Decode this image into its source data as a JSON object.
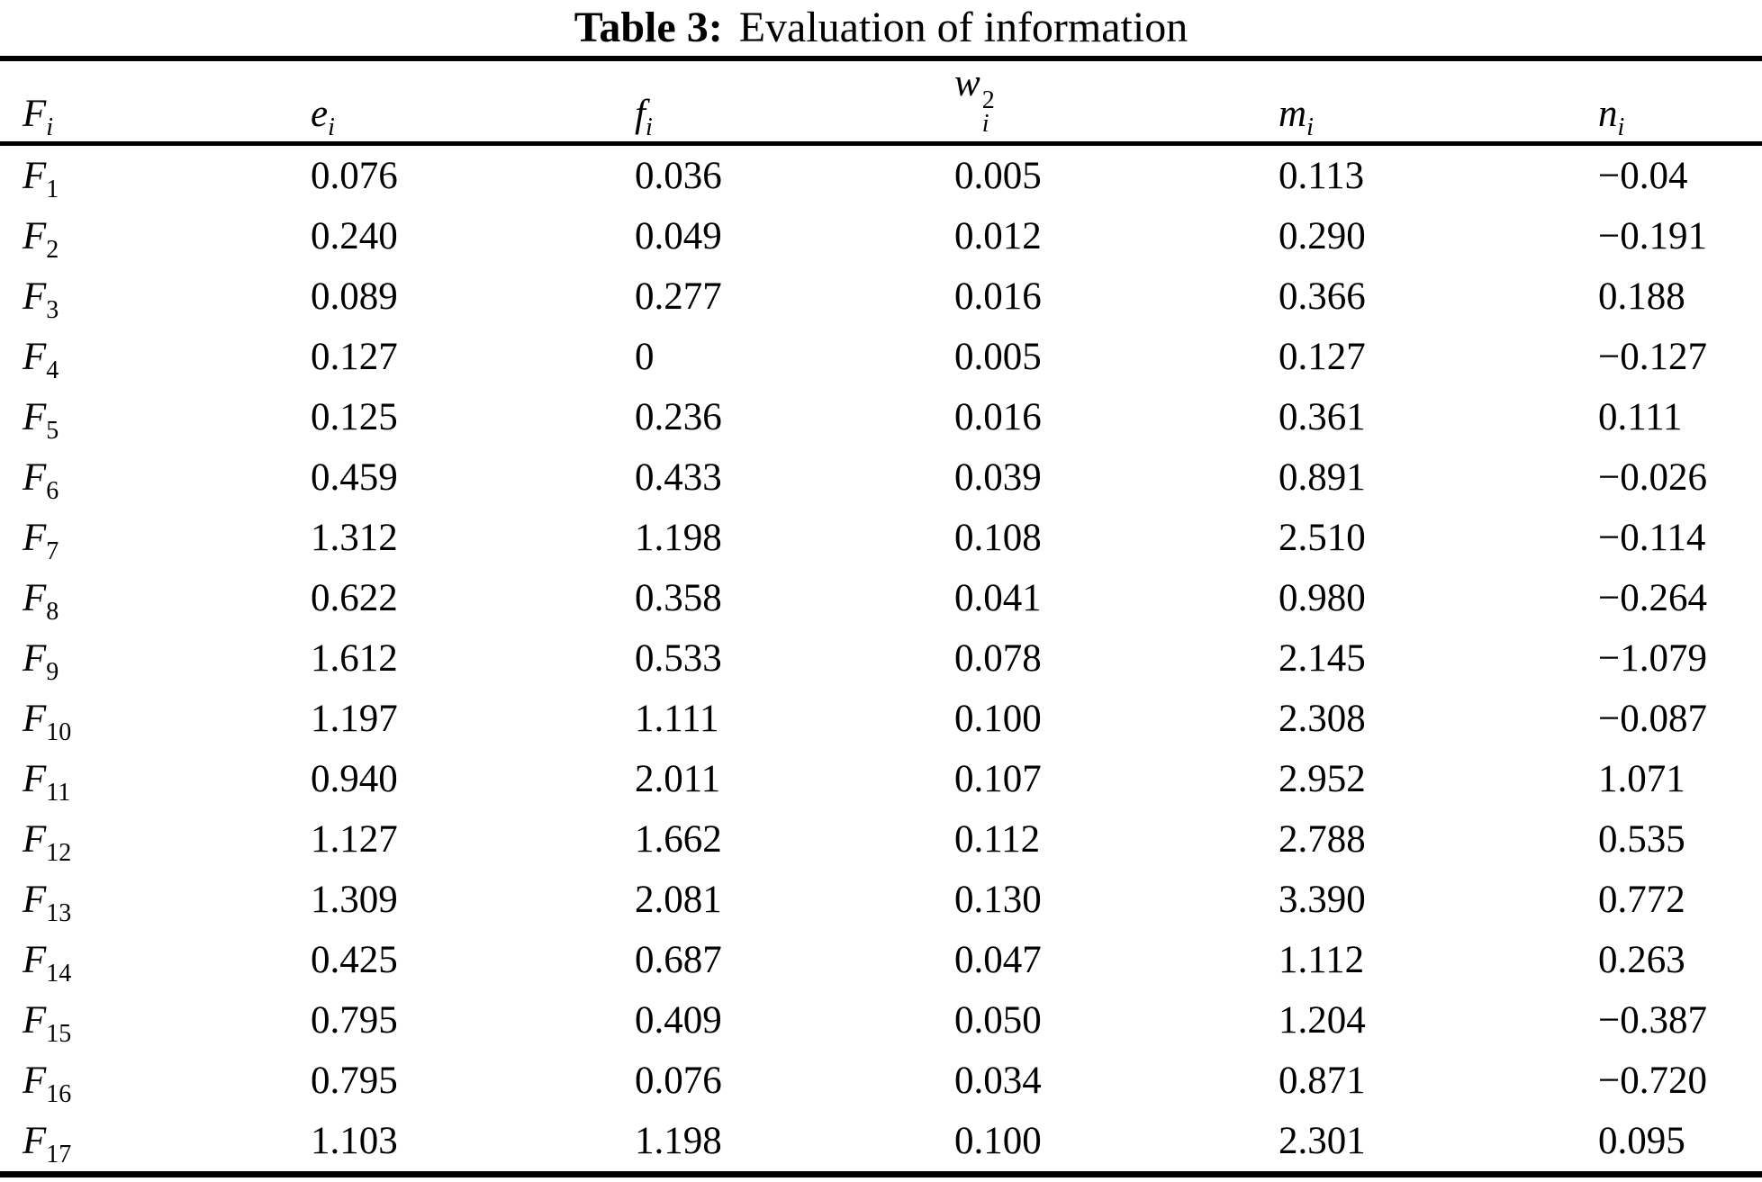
{
  "table": {
    "title_label": "Table 3:",
    "title_text": "Evaluation of information",
    "columns": [
      {
        "base": "F",
        "sub": "i"
      },
      {
        "base": "e",
        "sub": "i"
      },
      {
        "base": "f",
        "sub": "i"
      },
      {
        "base": "w",
        "sub": "i",
        "sup": "2"
      },
      {
        "base": "m",
        "sub": "i"
      },
      {
        "base": "n",
        "sub": "i"
      }
    ],
    "rows": [
      {
        "label_base": "F",
        "label_sub": "1",
        "values": [
          "0.076",
          "0.036",
          "0.005",
          "0.113",
          "−0.04"
        ]
      },
      {
        "label_base": "F",
        "label_sub": "2",
        "values": [
          "0.240",
          "0.049",
          "0.012",
          "0.290",
          "−0.191"
        ]
      },
      {
        "label_base": "F",
        "label_sub": "3",
        "values": [
          "0.089",
          "0.277",
          "0.016",
          "0.366",
          "0.188"
        ]
      },
      {
        "label_base": "F",
        "label_sub": "4",
        "values": [
          "0.127",
          "0",
          "0.005",
          "0.127",
          "−0.127"
        ]
      },
      {
        "label_base": "F",
        "label_sub": "5",
        "values": [
          "0.125",
          "0.236",
          "0.016",
          "0.361",
          "0.111"
        ]
      },
      {
        "label_base": "F",
        "label_sub": "6",
        "values": [
          "0.459",
          "0.433",
          "0.039",
          "0.891",
          "−0.026"
        ]
      },
      {
        "label_base": "F",
        "label_sub": "7",
        "values": [
          "1.312",
          "1.198",
          "0.108",
          "2.510",
          "−0.114"
        ]
      },
      {
        "label_base": "F",
        "label_sub": "8",
        "values": [
          "0.622",
          "0.358",
          "0.041",
          "0.980",
          "−0.264"
        ]
      },
      {
        "label_base": "F",
        "label_sub": "9",
        "values": [
          "1.612",
          "0.533",
          "0.078",
          "2.145",
          "−1.079"
        ]
      },
      {
        "label_base": "F",
        "label_sub": "10",
        "values": [
          "1.197",
          "1.111",
          "0.100",
          "2.308",
          "−0.087"
        ]
      },
      {
        "label_base": "F",
        "label_sub": "11",
        "values": [
          "0.940",
          "2.011",
          "0.107",
          "2.952",
          "1.071"
        ]
      },
      {
        "label_base": "F",
        "label_sub": "12",
        "values": [
          "1.127",
          "1.662",
          "0.112",
          "2.788",
          "0.535"
        ]
      },
      {
        "label_base": "F",
        "label_sub": "13",
        "values": [
          "1.309",
          "2.081",
          "0.130",
          "3.390",
          "0.772"
        ]
      },
      {
        "label_base": "F",
        "label_sub": "14",
        "values": [
          "0.425",
          "0.687",
          "0.047",
          "1.112",
          "0.263"
        ]
      },
      {
        "label_base": "F",
        "label_sub": "15",
        "values": [
          "0.795",
          "0.409",
          "0.050",
          "1.204",
          "−0.387"
        ]
      },
      {
        "label_base": "F",
        "label_sub": "16",
        "values": [
          "0.795",
          "0.076",
          "0.034",
          "0.871",
          "−0.720"
        ]
      },
      {
        "label_base": "F",
        "label_sub": "17",
        "values": [
          "1.103",
          "1.198",
          "0.100",
          "2.301",
          "0.095"
        ]
      }
    ]
  },
  "chart_data": {
    "type": "table",
    "title": "Table 3: Evaluation of information",
    "columns": [
      "F_i",
      "e_i",
      "f_i",
      "w_i^2",
      "m_i",
      "n_i"
    ],
    "rows": [
      [
        "F_1",
        0.076,
        0.036,
        0.005,
        0.113,
        -0.04
      ],
      [
        "F_2",
        0.24,
        0.049,
        0.012,
        0.29,
        -0.191
      ],
      [
        "F_3",
        0.089,
        0.277,
        0.016,
        0.366,
        0.188
      ],
      [
        "F_4",
        0.127,
        0,
        0.005,
        0.127,
        -0.127
      ],
      [
        "F_5",
        0.125,
        0.236,
        0.016,
        0.361,
        0.111
      ],
      [
        "F_6",
        0.459,
        0.433,
        0.039,
        0.891,
        -0.026
      ],
      [
        "F_7",
        1.312,
        1.198,
        0.108,
        2.51,
        -0.114
      ],
      [
        "F_8",
        0.622,
        0.358,
        0.041,
        0.98,
        -0.264
      ],
      [
        "F_9",
        1.612,
        0.533,
        0.078,
        2.145,
        -1.079
      ],
      [
        "F_10",
        1.197,
        1.111,
        0.1,
        2.308,
        -0.087
      ],
      [
        "F_11",
        0.94,
        2.011,
        0.107,
        2.952,
        1.071
      ],
      [
        "F_12",
        1.127,
        1.662,
        0.112,
        2.788,
        0.535
      ],
      [
        "F_13",
        1.309,
        2.081,
        0.13,
        3.39,
        0.772
      ],
      [
        "F_14",
        0.425,
        0.687,
        0.047,
        1.112,
        0.263
      ],
      [
        "F_15",
        0.795,
        0.409,
        0.05,
        1.204,
        -0.387
      ],
      [
        "F_16",
        0.795,
        0.076,
        0.034,
        0.871,
        -0.72
      ],
      [
        "F_17",
        1.103,
        1.198,
        0.1,
        2.301,
        0.095
      ]
    ]
  }
}
